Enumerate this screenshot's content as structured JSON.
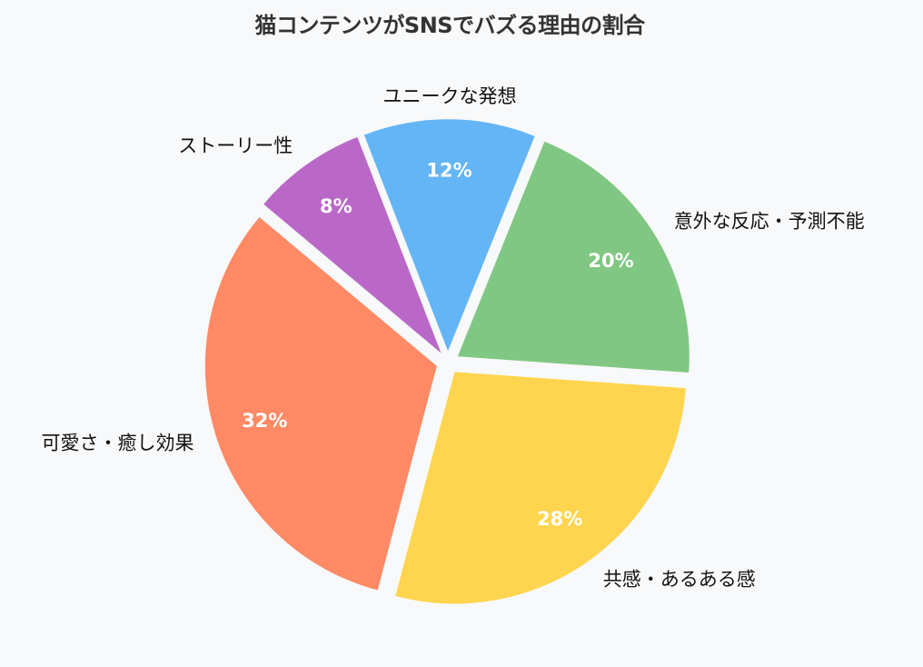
{
  "chart_data": {
    "type": "pie",
    "title": "猫コンテンツがSNSでバズる理由の割合",
    "categories": [
      "可愛さ・癒し効果",
      "共感・あるある感",
      "意外な反応・予測不能",
      "ユニークな発想",
      "ストーリー性"
    ],
    "values": [
      32,
      28,
      20,
      12,
      8
    ],
    "value_labels": [
      "32%",
      "28%",
      "20%",
      "12%",
      "8%"
    ],
    "colors": [
      "#ff8a65",
      "#ffd54f",
      "#81c784",
      "#64b5f6",
      "#ba68c8"
    ],
    "start_angle": 140,
    "direction": "counterclockwise",
    "explode": [
      0.05,
      0.05,
      0.05,
      0.05,
      0.05
    ],
    "legend": "none",
    "background": "#f8f9fa"
  }
}
